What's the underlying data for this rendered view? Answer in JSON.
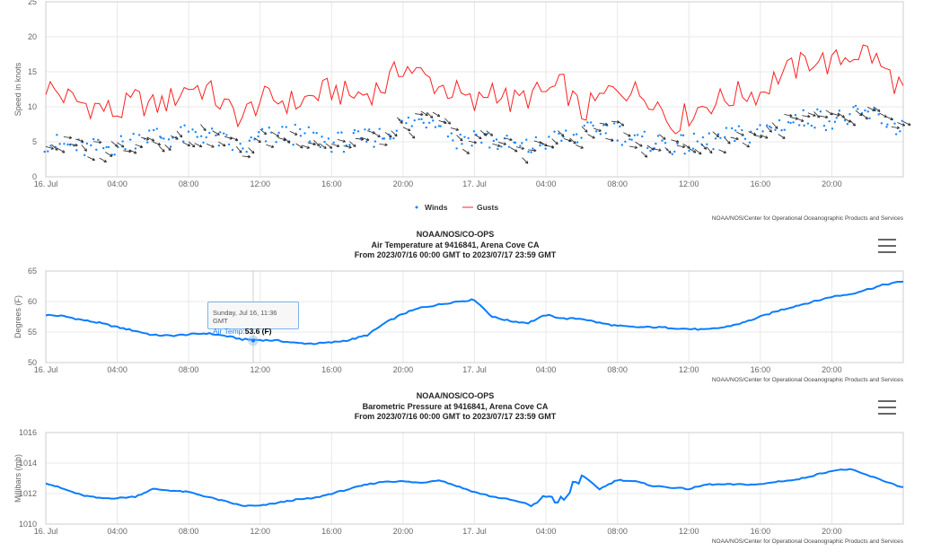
{
  "charts": [
    {
      "credit": "NOAA/NOS/Center for Operational Oceanographic Products and Services"
    },
    {
      "title": [
        "NOAA/NOS/CO-OPS",
        "Air Temperature at 9416841, Arena Cove CA",
        "From 2023/07/16 00:00 GMT to 2023/07/17 23:59 GMT"
      ],
      "credit": "NOAA/NOS/Center for Operational Oceanographic Products and Services"
    },
    {
      "title": [
        "NOAA/NOS/CO-OPS",
        "Barometric Pressure at 9416841, Arena Cove CA",
        "From 2023/07/16 00:00 GMT to 2023/07/17 23:59 GMT"
      ],
      "credit": "NOAA/NOS/Center for Operational Oceanographic Products and Services"
    }
  ],
  "tooltip": {
    "date": "Sunday, Jul 16, 11:36 GMT",
    "label": "Air Temp:",
    "value": "53.6 (F)"
  },
  "chart_data": [
    {
      "type": "line",
      "ylabel": "Speed in knots",
      "ylim": [
        0,
        25
      ],
      "yticks": [
        "0",
        "5",
        "10",
        "15",
        "20",
        "25"
      ],
      "xticks": [
        "16. Jul",
        "04:00",
        "08:00",
        "12:00",
        "16:00",
        "20:00",
        "17. Jul",
        "04:00",
        "08:00",
        "12:00",
        "16:00",
        "20:00"
      ],
      "x_hours": "0-48 hourly",
      "legend": [
        "Winds",
        "Gusts"
      ],
      "colors": {
        "Winds": "#1a85ff",
        "Gusts": "#ff2020",
        "arrows": "#222222"
      },
      "series": [
        {
          "name": "Winds",
          "values": [
            5,
            4.5,
            4,
            4,
            4.5,
            5.5,
            6,
            5.5,
            6,
            6,
            5,
            4,
            5.5,
            6,
            6,
            5.5,
            5,
            5,
            5.5,
            6,
            7.5,
            8,
            8.5,
            5,
            6,
            5,
            4.5,
            4,
            5,
            5.5,
            6,
            7,
            6.5,
            5,
            5,
            4.5,
            4.5,
            5,
            5.5,
            6,
            6.5,
            7.5,
            8,
            8.5,
            8,
            8.5,
            9,
            8,
            7
          ]
        },
        {
          "name": "Gusts",
          "values": [
            13,
            11.5,
            10.5,
            10,
            9,
            11,
            10,
            11,
            13,
            12.5,
            10,
            8.5,
            11,
            11,
            10.5,
            11.5,
            12.5,
            11.5,
            12,
            13,
            16,
            14.5,
            13,
            12,
            10,
            13,
            10.5,
            11.5,
            12,
            13,
            9,
            11,
            13,
            12,
            11.5,
            7.5,
            9,
            10.5,
            11,
            12,
            12,
            14.5,
            15.5,
            17,
            16,
            17.5,
            18,
            15,
            12.5
          ]
        }
      ]
    },
    {
      "type": "line",
      "ylabel": "Degrees (F)",
      "ylim": [
        50,
        65
      ],
      "yticks": [
        "50",
        "55",
        "60",
        "65"
      ],
      "color": "#0a7cff",
      "xticks": [
        "16. Jul",
        "04:00",
        "08:00",
        "12:00",
        "16:00",
        "20:00",
        "17. Jul",
        "04:00",
        "08:00",
        "12:00",
        "16:00",
        "20:00"
      ],
      "series": [
        {
          "name": "Air Temp",
          "values": [
            57.8,
            57.6,
            57,
            56.5,
            55.8,
            55.2,
            54.5,
            54.4,
            54.6,
            54.8,
            54.4,
            53.8,
            53.7,
            53.6,
            53.2,
            53.1,
            53.3,
            53.7,
            54.5,
            56.5,
            58,
            59,
            59.5,
            60,
            60.3,
            57.5,
            56.8,
            56.5,
            57.8,
            57.2,
            57.2,
            56.5,
            56,
            55.8,
            55.8,
            55.7,
            55.5,
            55.4,
            55.8,
            56.5,
            57.5,
            58.5,
            59.3,
            60,
            60.8,
            61.2,
            62,
            62.8,
            63.3
          ]
        }
      ]
    },
    {
      "type": "line",
      "ylabel": "Millibars (mb)",
      "ylim": [
        1010,
        1016
      ],
      "yticks": [
        "1010",
        "1012",
        "1014",
        "1016"
      ],
      "color": "#0a7cff",
      "xticks": [
        "16. Jul",
        "04:00",
        "08:00",
        "12:00",
        "16:00",
        "20:00",
        "17. Jul",
        "04:00",
        "08:00",
        "12:00",
        "16:00",
        "20:00"
      ],
      "series": [
        {
          "name": "Barometric Pressure",
          "values": [
            1012.7,
            1012.3,
            1011.9,
            1011.7,
            1011.7,
            1011.8,
            1012.3,
            1012.2,
            1012.1,
            1011.8,
            1011.5,
            1011.2,
            1011.2,
            1011.4,
            1011.6,
            1011.7,
            1012,
            1012.3,
            1012.6,
            1012.8,
            1012.8,
            1012.7,
            1012.9,
            1012.5,
            1012.1,
            1011.8,
            1011.6,
            1011.3,
            1011.5,
            1011.9,
            1013.2,
            1012.3,
            1012.9,
            1012.8,
            1012.5,
            1012.4,
            1012.3,
            1012.6,
            1012.6,
            1012.6,
            1012.6,
            1012.8,
            1012.9,
            1013.2,
            1013.5,
            1013.6,
            1013.2,
            1012.8,
            1012.4
          ]
        }
      ]
    }
  ]
}
